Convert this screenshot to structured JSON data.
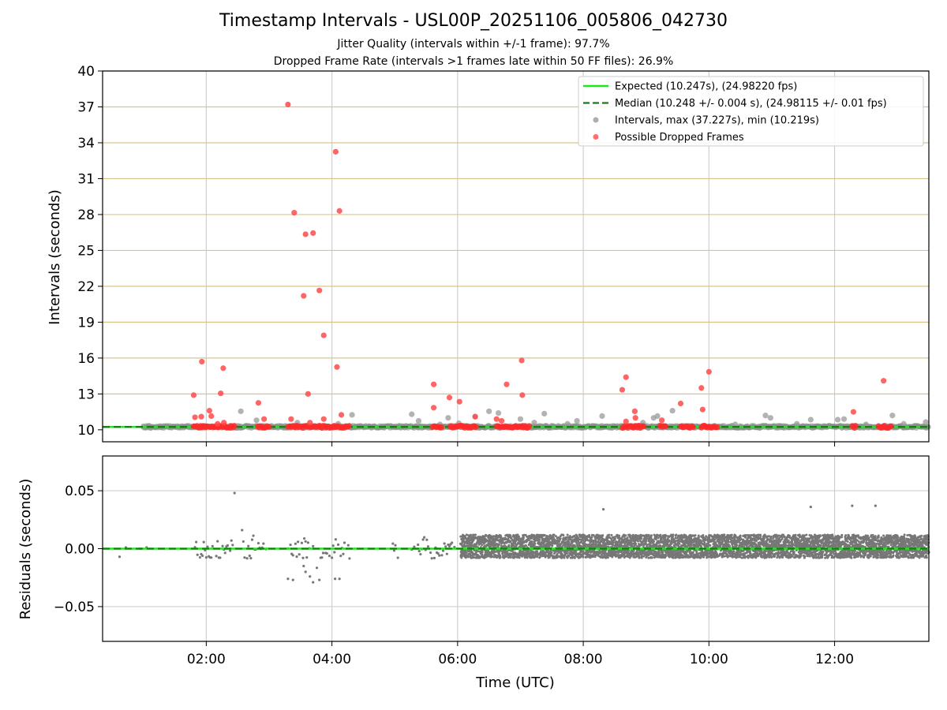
{
  "chart_data": [
    {
      "type": "scatter",
      "title": "Timestamp Intervals - USL00P_20251106_005806_042730",
      "subtitle_1": "Jitter Quality (intervals within +/-1 frame): 97.7%",
      "subtitle_2": "Dropped Frame Rate (intervals >1 frames late within 50 FF files): 26.9%",
      "xlabel": "",
      "ylabel": "Intervals (seconds)",
      "xlim_hours": [
        0.35,
        13.5
      ],
      "ylim": [
        9.0,
        40.0
      ],
      "yticks": [
        10,
        13,
        16,
        19,
        22,
        25,
        28,
        31,
        34,
        37,
        40
      ],
      "xticks_hours": [
        2,
        4,
        6,
        8,
        10,
        12
      ],
      "hlines": [
        {
          "label": "Expected (10.247s), (24.98220 fps)",
          "value": 10.247,
          "color": "#1be81b",
          "style": "solid"
        },
        {
          "label": "Median (10.248 +/- 0.004 s), (24.98115 +/- 0.01 fps)",
          "value": 10.248,
          "color": "#1a7a1a",
          "style": "dashed"
        }
      ],
      "legend": [
        {
          "label": "Expected (10.247s), (24.98220 fps)",
          "kind": "line",
          "color": "#1be81b"
        },
        {
          "label": "Median (10.248 +/- 0.004 s), (24.98115 +/- 0.01 fps)",
          "kind": "dashed",
          "color": "#1a7a1a"
        },
        {
          "label": "Intervals, max (37.227s), min (10.219s)",
          "kind": "dot",
          "color": "#999999"
        },
        {
          "label": "Possible Dropped Frames",
          "kind": "dot",
          "color": "#ff4a4a"
        }
      ],
      "legend_position": "top-right",
      "baseline_band": {
        "x_start": 1.0,
        "x_end": 13.5,
        "y": 10.25
      },
      "series": [
        {
          "name": "Intervals",
          "color": "#999999",
          "points": [
            [
              1.0,
              10.25
            ],
            [
              2.55,
              11.55
            ],
            [
              2.8,
              10.8
            ],
            [
              3.45,
              10.6
            ],
            [
              4.1,
              10.5
            ],
            [
              4.32,
              11.25
            ],
            [
              5.27,
              11.3
            ],
            [
              5.38,
              10.75
            ],
            [
              5.72,
              10.45
            ],
            [
              5.85,
              11.0
            ],
            [
              6.02,
              10.55
            ],
            [
              6.28,
              11.1
            ],
            [
              6.5,
              11.55
            ],
            [
              6.65,
              11.4
            ],
            [
              7.0,
              10.9
            ],
            [
              7.22,
              10.6
            ],
            [
              7.38,
              11.35
            ],
            [
              7.75,
              10.5
            ],
            [
              7.9,
              10.75
            ],
            [
              8.3,
              11.15
            ],
            [
              8.95,
              10.6
            ],
            [
              9.12,
              11.0
            ],
            [
              9.18,
              11.15
            ],
            [
              9.42,
              11.6
            ],
            [
              10.0,
              10.3
            ],
            [
              10.42,
              10.45
            ],
            [
              10.9,
              11.2
            ],
            [
              10.98,
              11.0
            ],
            [
              11.4,
              10.5
            ],
            [
              11.62,
              10.85
            ],
            [
              12.05,
              10.85
            ],
            [
              12.15,
              10.9
            ],
            [
              12.5,
              10.45
            ],
            [
              12.92,
              11.2
            ],
            [
              13.1,
              10.5
            ],
            [
              13.45,
              10.65
            ]
          ]
        },
        {
          "name": "Possible Dropped Frames",
          "color": "#ff4a4a",
          "points": [
            [
              1.8,
              12.9
            ],
            [
              1.82,
              11.05
            ],
            [
              1.93,
              15.7
            ],
            [
              1.92,
              11.1
            ],
            [
              2.05,
              11.6
            ],
            [
              2.08,
              11.15
            ],
            [
              2.18,
              10.5
            ],
            [
              2.23,
              13.05
            ],
            [
              2.27,
              15.15
            ],
            [
              2.28,
              10.6
            ],
            [
              2.83,
              12.25
            ],
            [
              2.92,
              10.9
            ],
            [
              3.3,
              37.2
            ],
            [
              3.35,
              10.9
            ],
            [
              3.4,
              28.15
            ],
            [
              3.55,
              21.2
            ],
            [
              3.58,
              26.35
            ],
            [
              3.62,
              13.0
            ],
            [
              3.65,
              10.6
            ],
            [
              3.7,
              26.45
            ],
            [
              3.8,
              21.65
            ],
            [
              3.87,
              17.9
            ],
            [
              3.87,
              10.9
            ],
            [
              4.06,
              33.25
            ],
            [
              4.08,
              15.25
            ],
            [
              4.12,
              28.3
            ],
            [
              4.15,
              11.25
            ],
            [
              5.62,
              13.8
            ],
            [
              5.62,
              11.85
            ],
            [
              5.87,
              12.7
            ],
            [
              6.03,
              12.35
            ],
            [
              6.28,
              11.1
            ],
            [
              6.62,
              10.9
            ],
            [
              6.7,
              10.75
            ],
            [
              6.78,
              13.8
            ],
            [
              7.02,
              15.8
            ],
            [
              7.03,
              12.9
            ],
            [
              8.62,
              13.35
            ],
            [
              8.68,
              14.4
            ],
            [
              8.68,
              10.7
            ],
            [
              8.82,
              11.55
            ],
            [
              8.83,
              11.0
            ],
            [
              9.25,
              10.8
            ],
            [
              9.55,
              12.2
            ],
            [
              9.88,
              13.5
            ],
            [
              9.9,
              11.7
            ],
            [
              10.0,
              14.85
            ],
            [
              12.3,
              11.5
            ],
            [
              12.78,
              14.1
            ]
          ]
        }
      ],
      "dropped_clusters_hours": [
        [
          1.8,
          2.45
        ],
        [
          2.82,
          3.0
        ],
        [
          3.3,
          4.28
        ],
        [
          5.6,
          5.75
        ],
        [
          5.88,
          6.3
        ],
        [
          6.62,
          7.15
        ],
        [
          8.62,
          8.98
        ],
        [
          9.22,
          9.32
        ],
        [
          9.55,
          9.75
        ],
        [
          9.88,
          10.15
        ],
        [
          12.28,
          12.35
        ],
        [
          12.7,
          12.9
        ]
      ]
    },
    {
      "type": "scatter",
      "xlabel": "Time (UTC)",
      "ylabel": "Residuals (seconds)",
      "xlim_hours": [
        0.35,
        13.5
      ],
      "ylim": [
        -0.08,
        0.08
      ],
      "yticks": [
        0.05,
        0.0,
        -0.05
      ],
      "ytick_labels": [
        "0.05",
        "0.00",
        "−0.05"
      ],
      "xticks_hours": [
        2,
        4,
        6,
        8,
        10,
        12
      ],
      "xtick_labels": [
        "02:00",
        "04:00",
        "06:00",
        "08:00",
        "10:00",
        "12:00"
      ],
      "hlines": [
        {
          "value": 0.0,
          "color": "#1be81b",
          "style": "solid"
        },
        {
          "value": 0.0,
          "color": "#1a7a1a",
          "style": "dashed"
        }
      ],
      "color": "#777777",
      "dense_band": {
        "x_start": 6.05,
        "x_end": 13.5,
        "y_min": -0.008,
        "y_max": 0.012
      },
      "outliers": [
        [
          0.62,
          -0.007
        ],
        [
          0.72,
          0.001
        ],
        [
          0.95,
          0.0
        ],
        [
          1.05,
          0.001
        ],
        [
          2.45,
          0.048
        ],
        [
          3.3,
          -0.026
        ],
        [
          3.38,
          -0.027
        ],
        [
          3.55,
          -0.015
        ],
        [
          3.58,
          -0.02
        ],
        [
          3.65,
          -0.024
        ],
        [
          3.7,
          -0.029
        ],
        [
          3.8,
          -0.027
        ],
        [
          4.05,
          -0.026
        ],
        [
          4.12,
          -0.026
        ],
        [
          8.32,
          0.034
        ],
        [
          11.62,
          0.036
        ],
        [
          12.28,
          0.037
        ],
        [
          12.65,
          0.037
        ]
      ],
      "sparse_clusters_hours": [
        [
          1.8,
          2.45
        ],
        [
          2.55,
          2.95
        ],
        [
          3.3,
          4.28
        ],
        [
          4.95,
          5.05
        ],
        [
          5.25,
          5.95
        ]
      ]
    }
  ]
}
